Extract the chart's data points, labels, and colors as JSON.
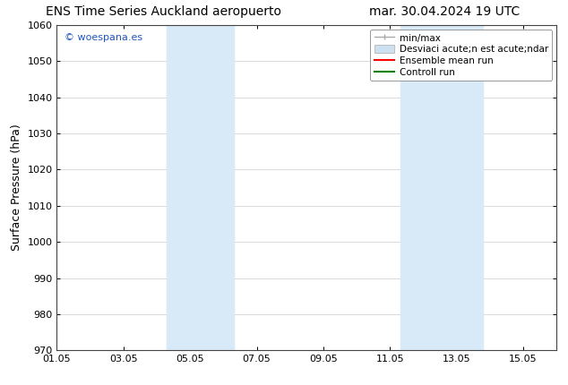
{
  "title_left": "ENS Time Series Auckland aeropuerto",
  "title_right": "mar. 30.04.2024 19 UTC",
  "ylabel": "Surface Pressure (hPa)",
  "ylim": [
    970,
    1060
  ],
  "yticks": [
    970,
    980,
    990,
    1000,
    1010,
    1020,
    1030,
    1040,
    1050,
    1060
  ],
  "xlim_start": 0,
  "xlim_end": 15,
  "xtick_labels": [
    "01.05",
    "03.05",
    "05.05",
    "07.05",
    "09.05",
    "11.05",
    "13.05",
    "15.05"
  ],
  "xtick_positions": [
    0,
    2,
    4,
    6,
    8,
    10,
    12,
    14
  ],
  "shaded_regions": [
    {
      "x_start": 3.3,
      "x_end": 5.3,
      "color": "#d8eaf7",
      "alpha": 1.0
    },
    {
      "x_start": 10.3,
      "x_end": 12.8,
      "color": "#d8eaf7",
      "alpha": 1.0
    }
  ],
  "legend_label_minmax": "min/max",
  "legend_label_std": "Desviaci acute;n est acute;ndar",
  "legend_label_ensemble": "Ensemble mean run",
  "legend_label_control": "Controll run",
  "legend_color_minmax": "#aaaaaa",
  "legend_color_std": "#cce0f0",
  "legend_color_ensemble": "red",
  "legend_color_control": "green",
  "watermark": "© woespana.es",
  "watermark_color": "#2255bb",
  "background_color": "#ffffff",
  "grid_color": "#cccccc",
  "title_fontsize": 10,
  "axis_fontsize": 9,
  "tick_fontsize": 8,
  "legend_fontsize": 7.5
}
